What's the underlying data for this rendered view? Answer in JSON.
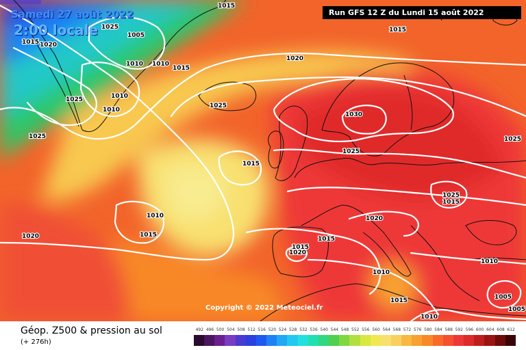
{
  "header": {
    "date": "Samedi 27 août 2022",
    "hour": "2:00 locale",
    "run": "Run GFS 12 Z du Lundi 15 août 2022"
  },
  "copyright": "Copyright © 2022 Meteociel.fr",
  "footer": {
    "field_title": "Géop. Z500 & pression au sol",
    "lead_time": "(+ 276h)"
  },
  "legend": {
    "ticks": [
      "492",
      "496",
      "500",
      "504",
      "508",
      "512",
      "516",
      "520",
      "524",
      "528",
      "532",
      "536",
      "540",
      "544",
      "548",
      "552",
      "556",
      "560",
      "564",
      "568",
      "572",
      "576",
      "580",
      "584",
      "588",
      "592",
      "596",
      "600",
      "604",
      "608",
      "612"
    ],
    "colors": [
      "#2a0a2e",
      "#4a1560",
      "#6a1e90",
      "#7a3cc0",
      "#4a3ad0",
      "#2a40e0",
      "#1e5af0",
      "#1e82f5",
      "#20a8f5",
      "#22c8f0",
      "#22e0e0",
      "#20e0b0",
      "#30d880",
      "#50d050",
      "#80d840",
      "#b0e040",
      "#d8e840",
      "#f0e850",
      "#f8e070",
      "#f8d060",
      "#f8b840",
      "#f8a030",
      "#f88828",
      "#f86a28",
      "#f55030",
      "#ee3838",
      "#dd2a2a",
      "#c01e1e",
      "#9a1414",
      "#6e0a0a",
      "#3a0404"
    ]
  },
  "isobars": [
    {
      "label": "1015"
    },
    {
      "label": "1025"
    },
    {
      "label": "1005"
    },
    {
      "label": "1015"
    },
    {
      "label": "1020"
    },
    {
      "label": "1010"
    },
    {
      "label": "1010"
    },
    {
      "label": "1015"
    },
    {
      "label": "1025"
    },
    {
      "label": "1010"
    },
    {
      "label": "1010"
    },
    {
      "label": "1020"
    },
    {
      "label": "1015"
    },
    {
      "label": "1025"
    },
    {
      "label": "1025"
    },
    {
      "label": "1030"
    },
    {
      "label": "1025"
    },
    {
      "label": "1015"
    },
    {
      "label": "1025"
    },
    {
      "label": "1025"
    },
    {
      "label": "1010"
    },
    {
      "label": "1015"
    },
    {
      "label": "1020"
    },
    {
      "label": "1020"
    },
    {
      "label": "1015"
    },
    {
      "label": "1015"
    },
    {
      "label": "1020"
    },
    {
      "label": "1015"
    },
    {
      "label": "1010"
    },
    {
      "label": "1010"
    },
    {
      "label": "1005"
    },
    {
      "label": "1005"
    },
    {
      "label": "1010"
    },
    {
      "label": "1015"
    }
  ]
}
